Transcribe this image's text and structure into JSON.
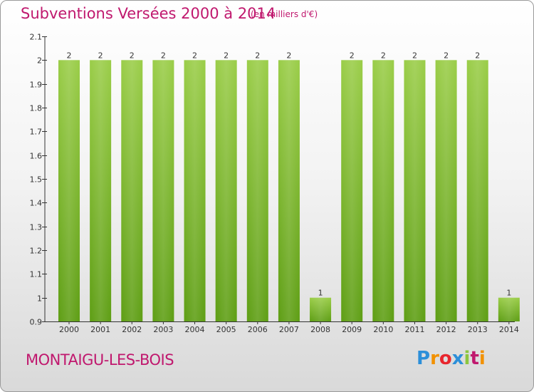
{
  "header": {
    "title": "Subventions Versées 2000 à 2014",
    "subtitle": "(en milliers d'€)"
  },
  "footer": {
    "commune": "MONTAIGU-LES-BOIS",
    "logo": [
      "P",
      "r",
      "o",
      "x",
      "i",
      "t",
      "i"
    ],
    "logo_colors": [
      "#2c8fd9",
      "#f29100",
      "#e8262e",
      "#2c8fd9",
      "#8cc63f",
      "#c0186e",
      "#f29100"
    ]
  },
  "chart_data": {
    "type": "bar",
    "title": "Subventions Versées 2000 à 2014",
    "subtitle": "(en milliers d'€)",
    "categories": [
      "2000",
      "2001",
      "2002",
      "2003",
      "2004",
      "2005",
      "2006",
      "2007",
      "2008",
      "2009",
      "2010",
      "2011",
      "2012",
      "2013",
      "2014"
    ],
    "values": [
      2,
      2,
      2,
      2,
      2,
      2,
      2,
      2,
      1,
      2,
      2,
      2,
      2,
      2,
      1
    ],
    "data_labels": [
      "2",
      "2",
      "2",
      "2",
      "2",
      "2",
      "2",
      "2",
      "1",
      "2",
      "2",
      "2",
      "2",
      "2",
      "1"
    ],
    "ylim": [
      0.9,
      2.1
    ],
    "yticks": [
      0.9,
      1,
      1.1,
      1.2,
      1.3,
      1.4,
      1.5,
      1.6,
      1.7,
      1.8,
      1.9,
      2,
      2.1
    ],
    "ytick_labels": [
      "0.9",
      "1",
      "1.1",
      "1.2",
      "1.3",
      "1.4",
      "1.5",
      "1.6",
      "1.7",
      "1.8",
      "1.9",
      "2",
      "2.1"
    ],
    "bar_color_top": "#9acd48",
    "bar_color_bottom": "#5e9e14",
    "grid": false,
    "legend": "none"
  }
}
